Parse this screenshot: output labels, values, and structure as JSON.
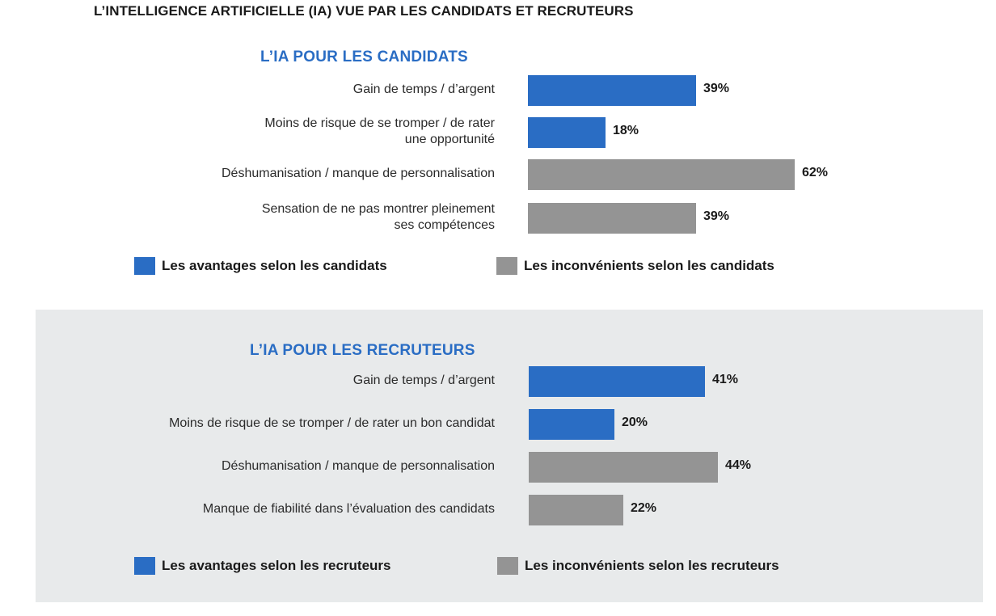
{
  "title": "L’INTELLIGENCE ARTIFICIELLE (IA) VUE PAR LES CANDIDATS ET RECRUTEURS",
  "colors": {
    "advantage": "#2a6dc4",
    "inconvenient": "#949494",
    "panel_bg": "#e8eaeb"
  },
  "chart_data": [
    {
      "type": "bar",
      "orientation": "horizontal",
      "title": "L’IA POUR LES CANDIDATS",
      "categories": [
        "Gain de temps / d’argent",
        "Moins de risque de se tromper / de rater une opportunité",
        "Déshumanisation / manque de personnalisation",
        "Sensation de ne pas montrer pleinement ses compétences"
      ],
      "values": [
        39,
        18,
        62,
        39
      ],
      "value_labels": [
        "39%",
        "18%",
        "62%",
        "39%"
      ],
      "series_of_category": [
        "advantage",
        "advantage",
        "inconvenient",
        "inconvenient"
      ],
      "legend": [
        {
          "name": "Les avantages selon les candidats",
          "color_key": "advantage"
        },
        {
          "name": "Les inconvénients selon les candidats",
          "color_key": "inconvenient"
        }
      ],
      "xlim": [
        0,
        62
      ]
    },
    {
      "type": "bar",
      "orientation": "horizontal",
      "title": "L’IA POUR LES RECRUTEURS",
      "categories": [
        "Gain de temps / d’argent",
        "Moins de risque de se tromper / de rater un bon candidat",
        "Déshumanisation / manque de personnalisation",
        "Manque de fiabilité dans l’évaluation des candidats"
      ],
      "values": [
        41,
        20,
        44,
        22
      ],
      "value_labels": [
        "41%",
        "20%",
        "44%",
        "22%"
      ],
      "series_of_category": [
        "advantage",
        "advantage",
        "inconvenient",
        "inconvenient"
      ],
      "legend": [
        {
          "name": "Les avantages selon les recruteurs",
          "color_key": "advantage"
        },
        {
          "name": "Les inconvénients selon les recruteurs",
          "color_key": "inconvenient"
        }
      ],
      "xlim": [
        0,
        62
      ]
    }
  ]
}
